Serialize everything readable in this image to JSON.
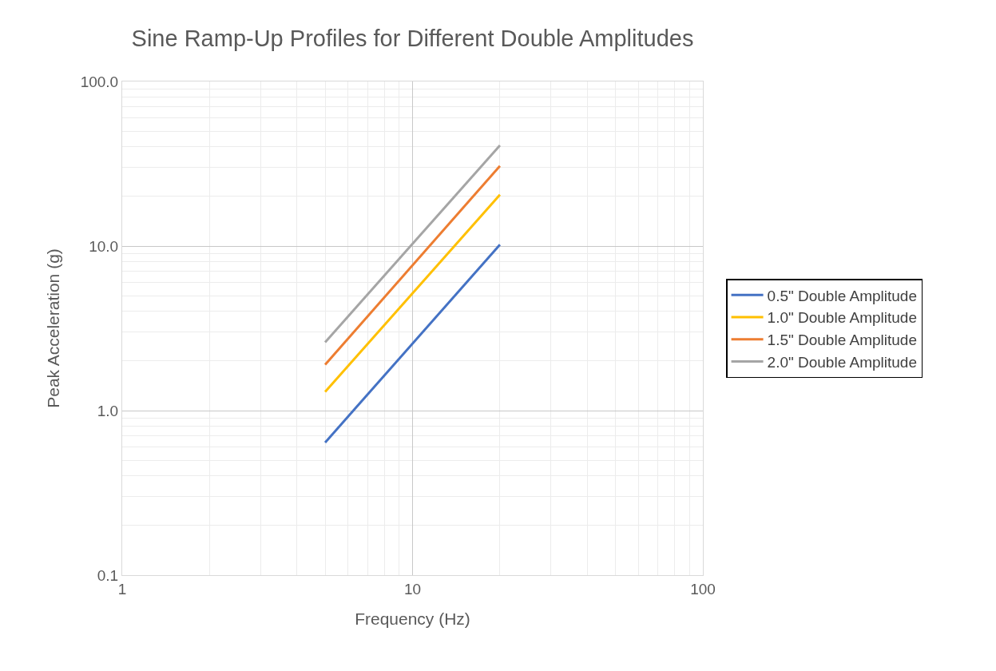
{
  "chart_data": {
    "type": "line",
    "title": "Sine Ramp-Up Profiles for Different Double Amplitudes",
    "xlabel": "Frequency (Hz)",
    "ylabel": "Peak Acceleration (g)",
    "x": [
      5,
      20
    ],
    "series": [
      {
        "name": "0.5\" Double Amplitude",
        "color": "#4472c4",
        "values": [
          0.64,
          10.2
        ]
      },
      {
        "name": "1.0\" Double Amplitude",
        "color": "#ffc000",
        "values": [
          1.3,
          20.5
        ]
      },
      {
        "name": "1.5\" Double Amplitude",
        "color": "#ed7d31",
        "values": [
          1.9,
          30.7
        ]
      },
      {
        "name": "2.0\" Double Amplitude",
        "color": "#a5a5a5",
        "values": [
          2.6,
          40.9
        ]
      }
    ],
    "log": "xy",
    "xlim": [
      1,
      100
    ],
    "xticks": [
      1,
      10,
      100
    ],
    "ylim": [
      0.1,
      100
    ],
    "yticks": [
      {
        "value": 0.1,
        "label": "0.1"
      },
      {
        "value": 1,
        "label": "1.0"
      },
      {
        "value": 10,
        "label": "10.0"
      },
      {
        "value": 100,
        "label": "100.0"
      }
    ],
    "grid": true,
    "legend": "right",
    "marker": "none",
    "line_style": "solid"
  }
}
